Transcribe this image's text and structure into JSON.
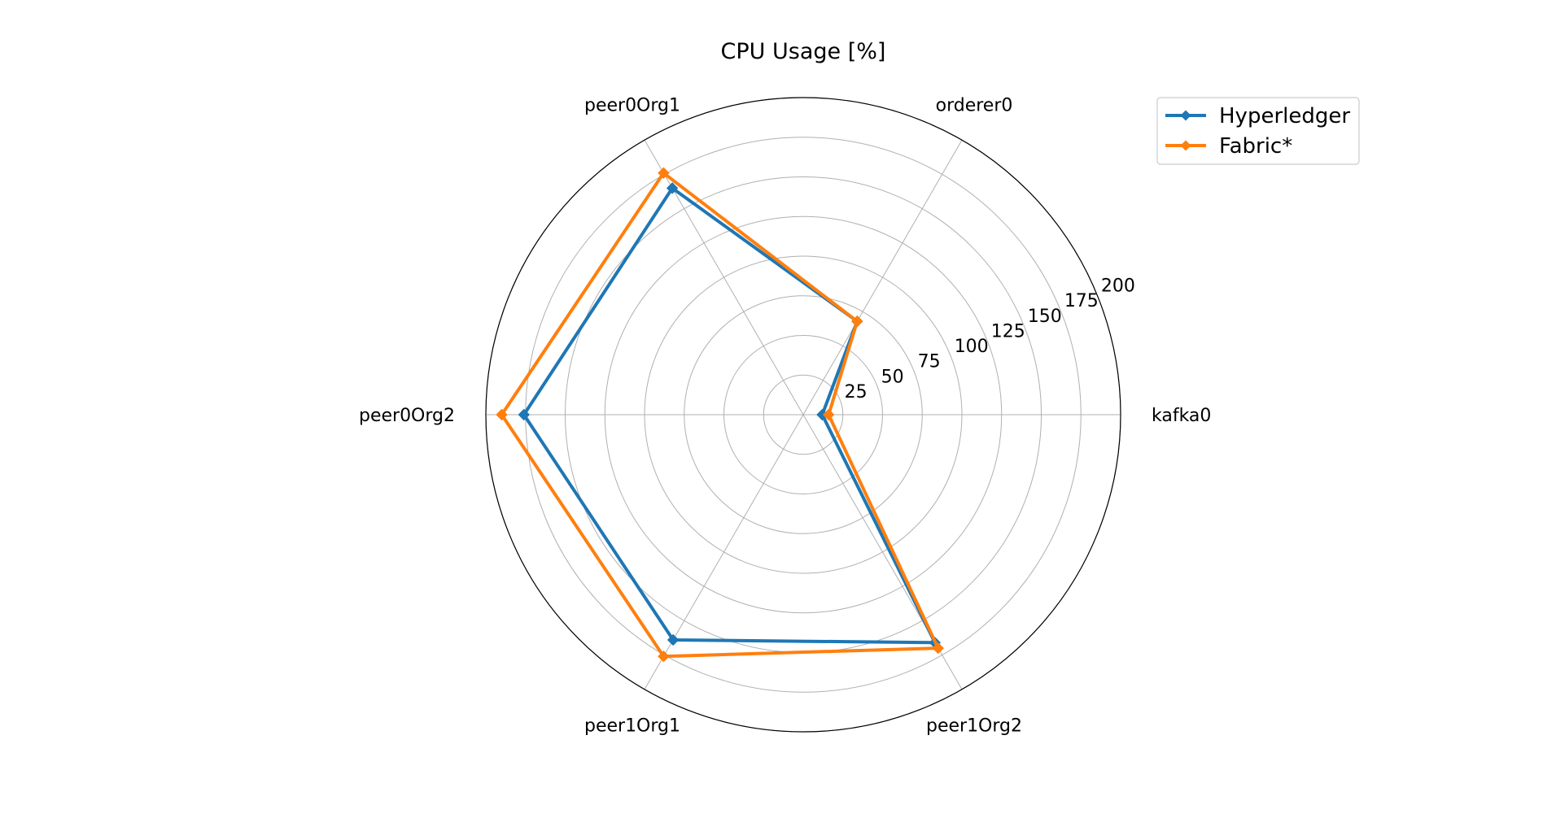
{
  "chart_data": {
    "type": "radar",
    "title": "CPU Usage [%]",
    "categories": [
      "kafka0",
      "orderer0",
      "peer0Org1",
      "peer0Org2",
      "peer1Org1",
      "peer1Org2"
    ],
    "radial_ticks": [
      "25",
      "50",
      "75",
      "100",
      "125",
      "150",
      "175",
      "200"
    ],
    "rlim": [
      0,
      200
    ],
    "grid": true,
    "legend_position": "top-right",
    "series": [
      {
        "name": "Hyperledger",
        "color": "#1f77b4",
        "values": [
          12,
          68,
          165,
          176,
          164,
          166
        ]
      },
      {
        "name": "Fabric*",
        "color": "#ff7f0e",
        "values": [
          16,
          68,
          176,
          190,
          176,
          170
        ]
      }
    ]
  }
}
